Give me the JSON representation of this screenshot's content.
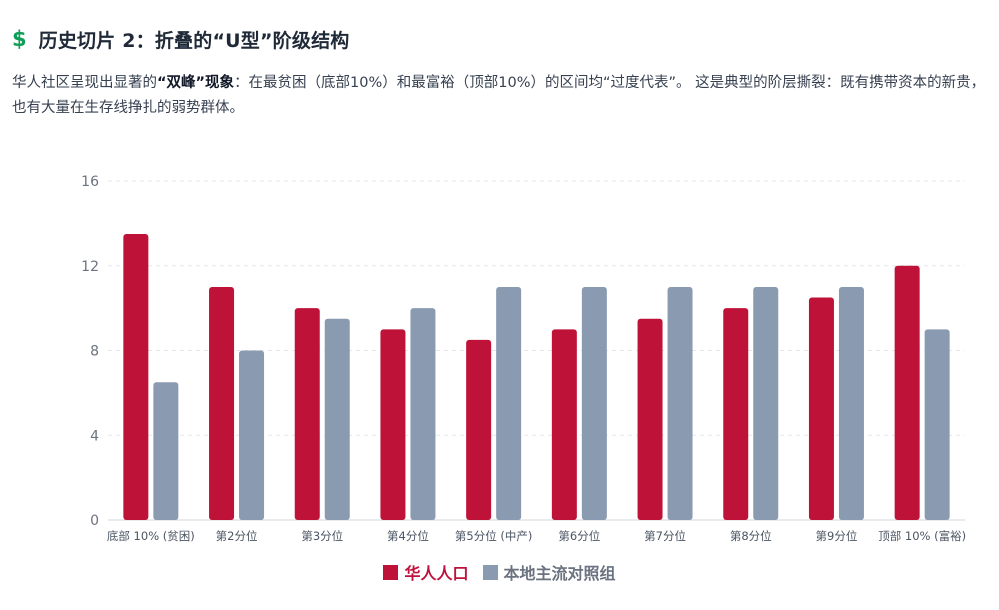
{
  "header": {
    "icon": "dollar-icon",
    "icon_glyph": "$",
    "icon_color": "#0f9d58",
    "title": "历史切片 2：折叠的“U型”阶级结构"
  },
  "description": {
    "part1": "华人社区呈现出显著的",
    "bold": "“双峰”现象",
    "part2": "：在最贫困（底部10%）和最富裕（顶部10%）的区间均“过度代表”。 这是典型的阶层撕裂：既有携带资本的新贵，也有大量在生存线挣扎的弱势群体。"
  },
  "chart_data": {
    "type": "bar",
    "categories": [
      "底部 10% (贫困)",
      "第2分位",
      "第3分位",
      "第4分位",
      "第5分位 (中产)",
      "第6分位",
      "第7分位",
      "第8分位",
      "第9分位",
      "顶部 10% (富裕)"
    ],
    "series": [
      {
        "name": "华人人口",
        "color": "#be1238",
        "values": [
          13.5,
          11,
          10,
          9,
          8.5,
          9,
          9.5,
          10,
          10.5,
          12
        ]
      },
      {
        "name": "本地主流对照组",
        "color": "#8a9ab0",
        "values": [
          6.5,
          8,
          9.5,
          10,
          11,
          11,
          11,
          11,
          11,
          9
        ]
      }
    ],
    "ylim": [
      0,
      16
    ],
    "yticks": [
      0,
      4,
      8,
      12,
      16
    ],
    "grid": true,
    "legend_position": "bottom"
  }
}
